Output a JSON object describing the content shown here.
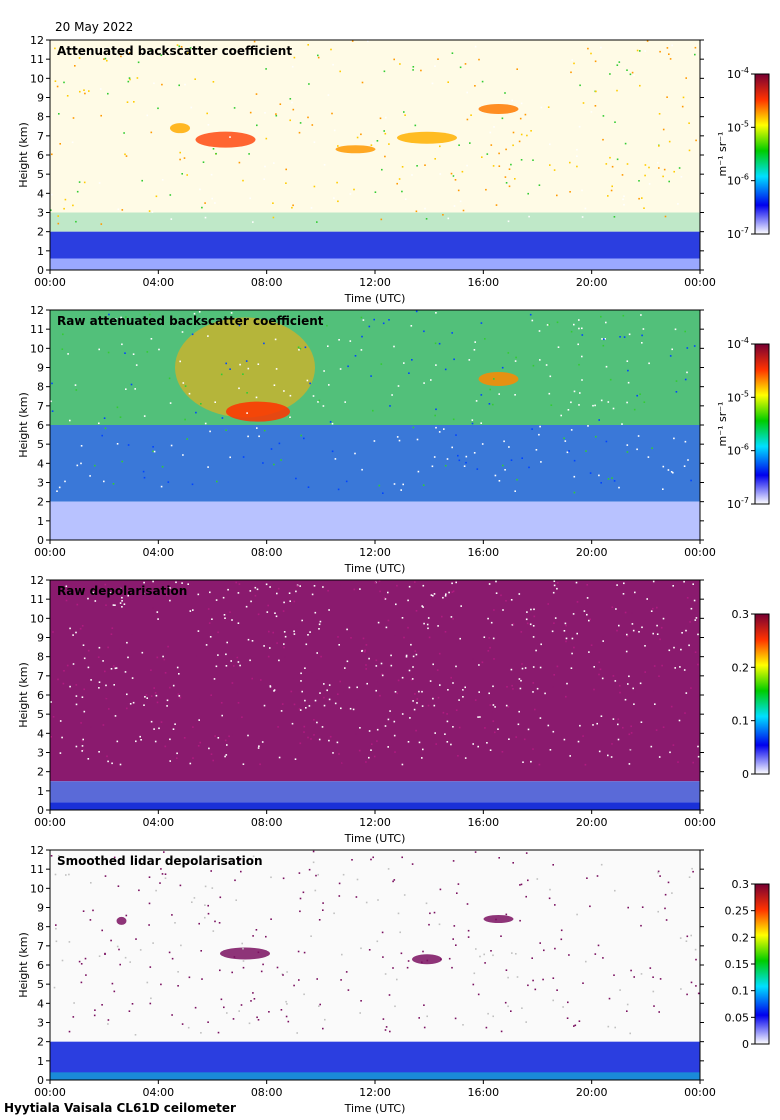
{
  "header": {
    "date": "20 May 2022"
  },
  "footer": {
    "instrument": "Hyytiala Vaisala CL61D ceilometer"
  },
  "chart_data": [
    {
      "type": "heatmap",
      "title": "Attenuated backscatter coefficient",
      "xlabel": "Time (UTC)",
      "ylabel": "Height (km)",
      "xticks": [
        "00:00",
        "04:00",
        "08:00",
        "12:00",
        "16:00",
        "20:00",
        "00:00"
      ],
      "yticks": [
        0,
        1,
        2,
        3,
        4,
        5,
        6,
        7,
        8,
        9,
        10,
        11,
        12
      ],
      "ylim": [
        0,
        12
      ],
      "colorbar": {
        "scale": "log",
        "min": 1e-07,
        "max": 0.0001,
        "ticks": [
          "10^-7",
          "10^-6",
          "10^-5",
          "10^-4"
        ],
        "tick_base": "10",
        "tick_exps": [
          "-7",
          "-6",
          "-5",
          "-4"
        ],
        "label": "m⁻¹ sr⁻¹"
      },
      "colormap": "rainbow"
    },
    {
      "type": "heatmap",
      "title": "Raw attenuated backscatter coefficient",
      "xlabel": "Time (UTC)",
      "ylabel": "Height (km)",
      "xticks": [
        "00:00",
        "04:00",
        "08:00",
        "12:00",
        "16:00",
        "20:00",
        "00:00"
      ],
      "yticks": [
        0,
        1,
        2,
        3,
        4,
        5,
        6,
        7,
        8,
        9,
        10,
        11,
        12
      ],
      "ylim": [
        0,
        12
      ],
      "colorbar": {
        "scale": "log",
        "min": 1e-07,
        "max": 0.0001,
        "ticks": [
          "10^-7",
          "10^-6",
          "10^-5",
          "10^-4"
        ],
        "tick_base": "10",
        "tick_exps": [
          "-7",
          "-6",
          "-5",
          "-4"
        ],
        "label": "m⁻¹ sr⁻¹"
      },
      "colormap": "rainbow"
    },
    {
      "type": "heatmap",
      "title": "Raw depolarisation",
      "xlabel": "Time (UTC)",
      "ylabel": "Height (km)",
      "xticks": [
        "00:00",
        "04:00",
        "08:00",
        "12:00",
        "16:00",
        "20:00",
        "00:00"
      ],
      "yticks": [
        0,
        1,
        2,
        3,
        4,
        5,
        6,
        7,
        8,
        9,
        10,
        11,
        12
      ],
      "ylim": [
        0,
        12
      ],
      "colorbar": {
        "scale": "linear",
        "min": 0,
        "max": 0.3,
        "ticks": [
          "0",
          "0.1",
          "0.2",
          "0.3"
        ],
        "label": ""
      },
      "colormap": "rainbow"
    },
    {
      "type": "heatmap",
      "title": "Smoothed lidar depolarisation",
      "xlabel": "Time (UTC)",
      "ylabel": "Height (km)",
      "xticks": [
        "00:00",
        "04:00",
        "08:00",
        "12:00",
        "16:00",
        "20:00",
        "00:00"
      ],
      "yticks": [
        0,
        1,
        2,
        3,
        4,
        5,
        6,
        7,
        8,
        9,
        10,
        11,
        12
      ],
      "ylim": [
        0,
        12
      ],
      "colorbar": {
        "scale": "linear",
        "min": 0,
        "max": 0.3,
        "ticks": [
          "0",
          "0.05",
          "0.1",
          "0.15",
          "0.2",
          "0.25",
          "0.3"
        ],
        "label": ""
      },
      "colormap": "rainbow"
    }
  ]
}
